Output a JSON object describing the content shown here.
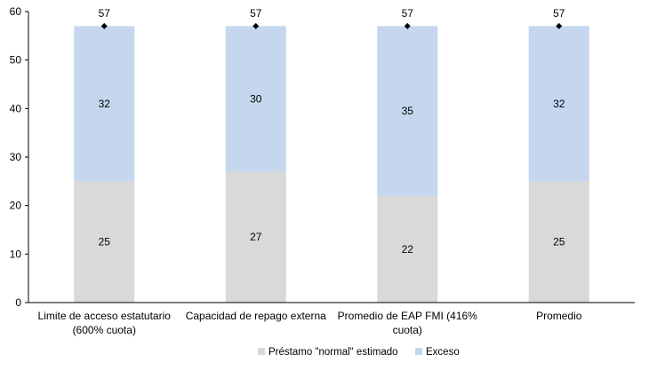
{
  "chart_data": {
    "type": "bar",
    "stacked": true,
    "categories": [
      [
        "Limite de acceso estatutario",
        "(600% cuota)"
      ],
      [
        "Capacidad de repago externa"
      ],
      [
        "Promedio de EAP FMI (416%",
        "cuota)"
      ],
      [
        "Promedio"
      ]
    ],
    "series": [
      {
        "name": "Préstamo \"normal\" estimado",
        "values": [
          25,
          27,
          22,
          25
        ],
        "color": "#d9d9d9"
      },
      {
        "name": "Exceso",
        "values": [
          32,
          30,
          35,
          32
        ],
        "color": "#c5d6ee"
      }
    ],
    "totals": [
      57,
      57,
      57,
      57
    ],
    "total_marker_color": "#000000",
    "ylim": [
      0,
      60
    ],
    "yticks": [
      0,
      10,
      20,
      30,
      40,
      50,
      60
    ],
    "title": "",
    "xlabel": "",
    "ylabel": "",
    "grid": false,
    "legend_position": "bottom"
  }
}
